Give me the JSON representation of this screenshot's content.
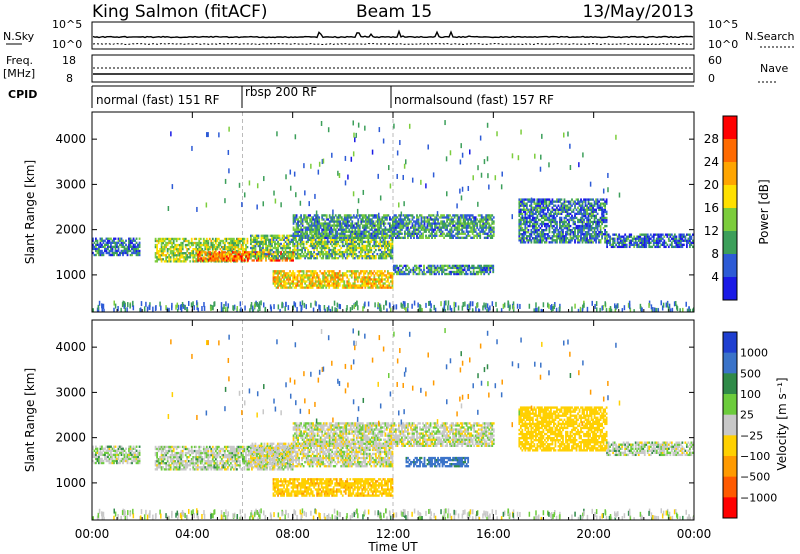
{
  "header": {
    "station": "King Salmon (fitACF)",
    "beam": "Beam 15",
    "date": "13/May/2013"
  },
  "noise_panel": {
    "left_label": "N.Sky",
    "right_label": "N.Search",
    "left_ticks": [
      "10^5",
      "10^0"
    ],
    "right_ticks": [
      "10^5",
      "10^0"
    ]
  },
  "freq_panel": {
    "left_label_1": "Freq.",
    "left_label_2": "[MHz]",
    "right_label": "Nave",
    "left_ticks": [
      "18",
      "8"
    ],
    "right_ticks": [
      "60",
      "0"
    ]
  },
  "cpid_panel": {
    "label": "CPID",
    "modes": [
      {
        "name": "normal (fast) 151 RF"
      },
      {
        "name": "rbsp 200 RF"
      },
      {
        "name": "normalsound (fast) 157 RF"
      }
    ]
  },
  "power_colorbar": {
    "label": "Power [dB]",
    "ticks": [
      "28",
      "24",
      "20",
      "16",
      "12",
      "8",
      "4"
    ],
    "colors": [
      "#ff0000",
      "#ff6a00",
      "#ffa500",
      "#ffe000",
      "#7ccd3c",
      "#3c9f5a",
      "#2d5bd6",
      "#1a1ae6"
    ]
  },
  "velocity_colorbar": {
    "label": "Velocity [m s⁻¹]",
    "ticks": [
      "1000",
      "500",
      "100",
      "25",
      "−25",
      "−100",
      "−500",
      "−1000"
    ],
    "colors": [
      "#1f3fd0",
      "#3a73c9",
      "#2f8a48",
      "#6ccc3c",
      "#c8c8c8",
      "#ffd000",
      "#ff9a00",
      "#ff5a00",
      "#ff0000"
    ]
  },
  "chart_data": [
    {
      "type": "heatmap",
      "title": "Power",
      "ylabel": "Slant Range [km]",
      "ylim": [
        180,
        4600
      ],
      "yticks": [
        1000,
        2000,
        3000,
        4000
      ],
      "xlim": [
        0,
        24
      ],
      "x_ticks": [
        "00:00",
        "04:00",
        "08:00",
        "12:00",
        "16:00",
        "20:00",
        "00:00"
      ],
      "echo_bands": [
        {
          "t0": 0.0,
          "t1": 1.9,
          "r0": 1420,
          "r1": 1800,
          "level": 6
        },
        {
          "t0": 2.5,
          "t1": 6.2,
          "r0": 1280,
          "r1": 1800,
          "level": 14
        },
        {
          "t0": 4.2,
          "t1": 8.0,
          "r0": 1300,
          "r1": 1520,
          "level": 24
        },
        {
          "t0": 6.3,
          "t1": 12.0,
          "r0": 1350,
          "r1": 1850,
          "level": 12
        },
        {
          "t0": 7.2,
          "t1": 12.0,
          "r0": 700,
          "r1": 1100,
          "level": 18
        },
        {
          "t0": 8.0,
          "t1": 16.0,
          "r0": 1800,
          "r1": 2300,
          "level": 9
        },
        {
          "t0": 12.0,
          "t1": 16.0,
          "r0": 1000,
          "r1": 1200,
          "level": 8
        },
        {
          "t0": 17.0,
          "t1": 20.5,
          "r0": 1700,
          "r1": 2650,
          "level": 7
        },
        {
          "t0": 20.5,
          "t1": 24.0,
          "r0": 1600,
          "r1": 1900,
          "level": 6
        }
      ]
    },
    {
      "type": "heatmap",
      "title": "Velocity",
      "ylabel": "Slant Range [km]",
      "ylim": [
        180,
        4600
      ],
      "yticks": [
        1000,
        2000,
        3000,
        4000
      ],
      "xlim": [
        0,
        24
      ],
      "x_ticks": [
        "00:00",
        "04:00",
        "08:00",
        "12:00",
        "16:00",
        "20:00",
        "00:00"
      ],
      "xlabel": "Time UT",
      "echo_bands": [
        {
          "t0": 0.0,
          "t1": 1.9,
          "r0": 1420,
          "r1": 1800,
          "velocity": 0
        },
        {
          "t0": 2.5,
          "t1": 8.0,
          "r0": 1280,
          "r1": 1800,
          "velocity": 0
        },
        {
          "t0": 6.3,
          "t1": 12.0,
          "r0": 1350,
          "r1": 1850,
          "velocity": -10
        },
        {
          "t0": 7.2,
          "t1": 12.0,
          "r0": 700,
          "r1": 1100,
          "velocity": -80
        },
        {
          "t0": 8.0,
          "t1": 16.0,
          "r0": 1800,
          "r1": 2300,
          "velocity": -5
        },
        {
          "t0": 12.5,
          "t1": 15.0,
          "r0": 1350,
          "r1": 1550,
          "velocity": 120
        },
        {
          "t0": 17.0,
          "t1": 20.5,
          "r0": 1700,
          "r1": 2650,
          "velocity": -60
        },
        {
          "t0": 20.5,
          "t1": 24.0,
          "r0": 1600,
          "r1": 1900,
          "velocity": 0
        }
      ]
    }
  ]
}
